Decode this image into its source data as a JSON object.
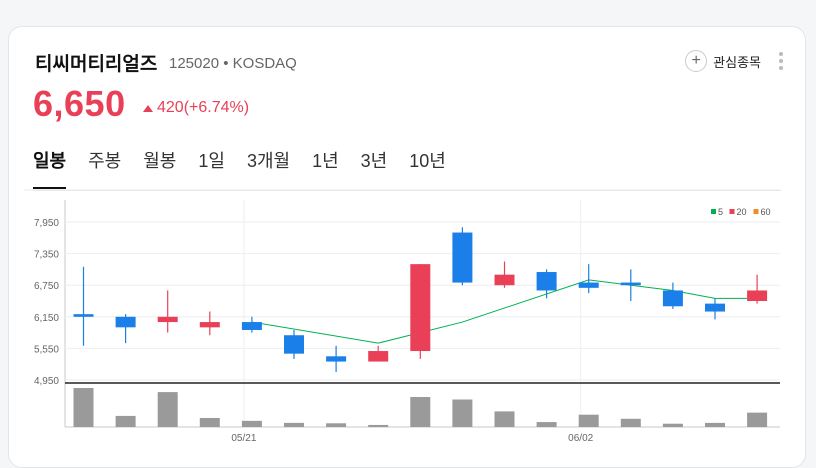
{
  "stock": {
    "name": "티씨머티리얼즈",
    "meta": "125020 • KOSDAQ",
    "price": "6,650",
    "change": "420(+6.74%)",
    "favorite_label": "관심종목"
  },
  "tabs": [
    "일봉",
    "주봉",
    "월봉",
    "1일",
    "3개월",
    "1년",
    "3년",
    "10년"
  ],
  "colors": {
    "up": "#e94057",
    "down": "#1a7fe8",
    "ma5": "#00b14f",
    "ma20": "#e94057",
    "ma60": "#f08c2b",
    "volume": "#9a9a9a"
  },
  "chart_data": {
    "type": "candlestick",
    "y_ticks": [
      "7,950",
      "7,350",
      "6,750",
      "6,150",
      "5,550",
      "4,950"
    ],
    "ylim": [
      4950,
      7950
    ],
    "x_labels": [
      {
        "index": 4,
        "label": "05/21"
      },
      {
        "index": 12,
        "label": "06/02"
      }
    ],
    "legend": [
      "5",
      "20",
      "60"
    ],
    "candles": [
      {
        "open": 6200,
        "close": 6150,
        "high": 7100,
        "low": 5600
      },
      {
        "open": 6150,
        "close": 5950,
        "high": 6200,
        "low": 5650
      },
      {
        "open": 6050,
        "close": 6150,
        "high": 6650,
        "low": 5850
      },
      {
        "open": 5950,
        "close": 6050,
        "high": 6250,
        "low": 5800
      },
      {
        "open": 6050,
        "close": 5900,
        "high": 6150,
        "low": 5850
      },
      {
        "open": 5800,
        "close": 5450,
        "high": 5900,
        "low": 5350
      },
      {
        "open": 5400,
        "close": 5300,
        "high": 5600,
        "low": 5100
      },
      {
        "open": 5300,
        "close": 5500,
        "high": 5600,
        "low": 5300
      },
      {
        "open": 5500,
        "close": 7150,
        "high": 7150,
        "low": 5350
      },
      {
        "open": 7750,
        "close": 6800,
        "high": 7850,
        "low": 6750
      },
      {
        "open": 6750,
        "close": 6950,
        "high": 7200,
        "low": 6700
      },
      {
        "open": 7000,
        "close": 6650,
        "high": 7050,
        "low": 6500
      },
      {
        "open": 6800,
        "close": 6700,
        "high": 7150,
        "low": 6600
      },
      {
        "open": 6800,
        "close": 6750,
        "high": 7050,
        "low": 6450
      },
      {
        "open": 6650,
        "close": 6350,
        "high": 6800,
        "low": 6300
      },
      {
        "open": 6400,
        "close": 6250,
        "high": 6500,
        "low": 6100
      },
      {
        "open": 6450,
        "close": 6650,
        "high": 6950,
        "low": 6400
      }
    ],
    "ma5": [
      null,
      null,
      null,
      null,
      6050,
      null,
      null,
      5650,
      null,
      6050,
      null,
      null,
      6850,
      null,
      6650,
      6500,
      6500
    ],
    "volume": [
      95,
      27,
      85,
      22,
      15,
      10,
      9,
      5,
      73,
      67,
      38,
      12,
      30,
      20,
      8,
      10,
      35
    ]
  }
}
